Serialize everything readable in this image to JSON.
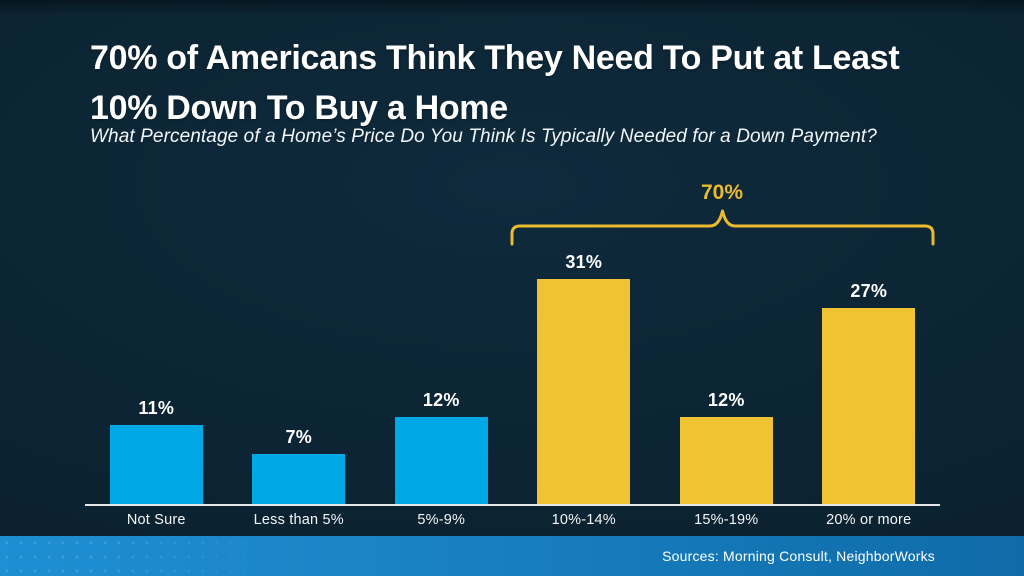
{
  "header": {
    "title_line1": "70% of Americans Think They Need To Put at Least",
    "title_line2": "10% Down To Buy a Home",
    "subtitle": "What Percentage of a Home’s Price Do You Think Is Typically Needed for a Down Payment?"
  },
  "chart_data": {
    "type": "bar",
    "title": "70% of Americans Think They Need To Put at Least 10% Down To Buy a Home",
    "subtitle": "What Percentage of a Home’s Price Do You Think Is Typically Needed for a Down Payment?",
    "categories": [
      "Not Sure",
      "Less than 5%",
      "5%-9%",
      "10%-14%",
      "15%-19%",
      "20% or more"
    ],
    "values": [
      11,
      7,
      12,
      31,
      12,
      27
    ],
    "value_labels": [
      "11%",
      "7%",
      "12%",
      "31%",
      "12%",
      "27%"
    ],
    "bar_colors": [
      "#00a9e6",
      "#00a9e6",
      "#00a9e6",
      "#f0c335",
      "#f0c335",
      "#f0c335"
    ],
    "xlabel": "",
    "ylabel": "",
    "ylim": [
      0,
      34
    ],
    "grid": false,
    "legend": false,
    "annotation": {
      "label": "70%",
      "spans_categories": [
        "10%-14%",
        "15%-19%",
        "20% or more"
      ],
      "color": "#ebba2d"
    }
  },
  "footer": {
    "sources": "Sources: Morning Consult, NeighborWorks"
  },
  "colors": {
    "background": "#0c2433",
    "blue_bar": "#00a9e6",
    "gold_bar": "#f0c335",
    "gold_accent": "#ebba2d",
    "axis_line": "#e3e7ea",
    "footer_left": "#1e8fd3",
    "footer_right": "#0f6ba8",
    "text": "#ffffff"
  }
}
